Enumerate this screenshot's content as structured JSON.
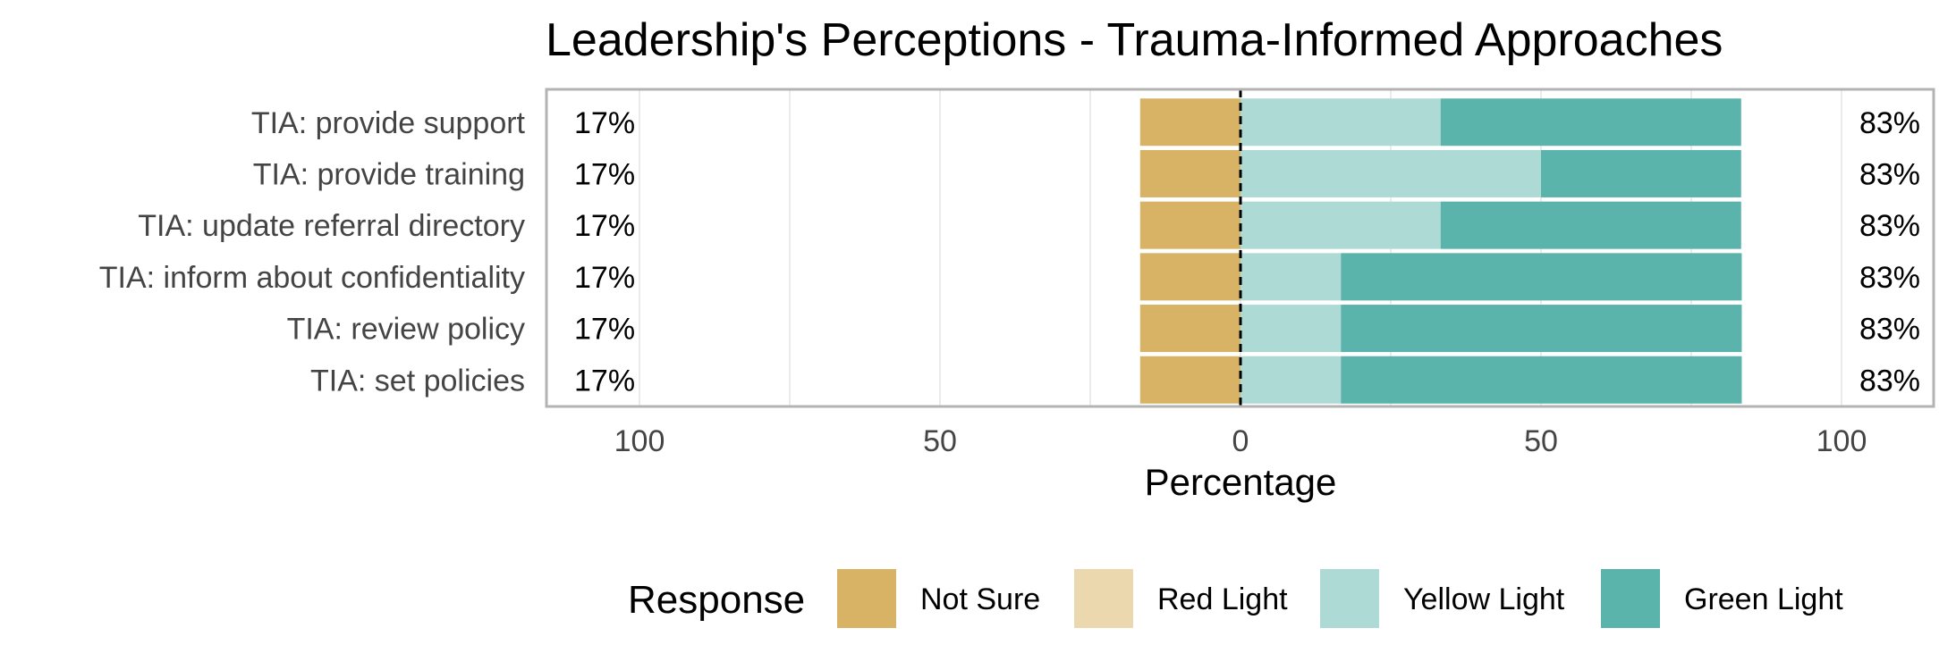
{
  "chart_data": {
    "type": "bar",
    "orientation": "horizontal",
    "stacked": "diverging",
    "title": "Leadership's Perceptions - Trauma-Informed Approaches",
    "xlabel": "Percentage",
    "ylabel": "",
    "xlim": [
      -100,
      100
    ],
    "xticks": [
      -100,
      -50,
      0,
      50,
      100
    ],
    "xtick_labels": [
      "100",
      "50",
      "0",
      "50",
      "100"
    ],
    "grid": true,
    "legend_position": "bottom",
    "legend_title": "Response",
    "categories": [
      "TIA: provide support",
      "TIA: provide training",
      "TIA: update referral directory",
      "TIA: inform about confidentiality",
      "TIA: review policy",
      "TIA: set policies"
    ],
    "series": [
      {
        "name": "Not Sure",
        "color": "#D8B365",
        "values": [
          -16.7,
          -16.7,
          -16.7,
          -16.7,
          -16.7,
          -16.7
        ]
      },
      {
        "name": "Red Light",
        "color": "#EBD8AE",
        "values": [
          0,
          0,
          0,
          0,
          0,
          0
        ]
      },
      {
        "name": "Yellow Light",
        "color": "#ADDAD5",
        "values": [
          33.3,
          50,
          33.3,
          16.7,
          16.7,
          16.7
        ]
      },
      {
        "name": "Green Light",
        "color": "#5AB4AC",
        "values": [
          50,
          33.3,
          50,
          66.7,
          66.7,
          66.7
        ]
      }
    ],
    "left_labels": [
      "17%",
      "17%",
      "17%",
      "17%",
      "17%",
      "17%"
    ],
    "right_labels": [
      "83%",
      "83%",
      "83%",
      "83%",
      "83%",
      "83%"
    ]
  }
}
